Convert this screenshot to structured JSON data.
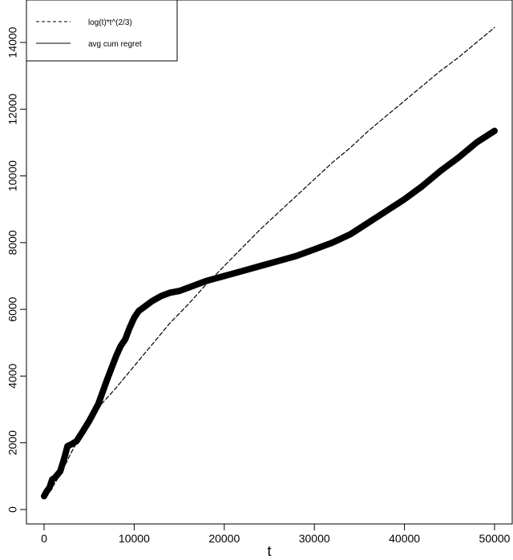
{
  "chart_data": {
    "type": "line",
    "title": "",
    "xlabel": "t",
    "ylabel": "",
    "xlim": [
      0,
      50000
    ],
    "ylim": [
      0,
      15000
    ],
    "x_ticks": [
      0,
      10000,
      20000,
      30000,
      40000,
      50000
    ],
    "x_tick_labels": [
      "0",
      "10000",
      "20000",
      "30000",
      "40000",
      "50000"
    ],
    "y_ticks": [
      0,
      2000,
      4000,
      6000,
      8000,
      10000,
      12000,
      14000
    ],
    "y_tick_labels": [
      "0",
      "2000",
      "4000",
      "6000",
      "8000",
      "10000",
      "12000",
      "14000"
    ],
    "grid": false,
    "legend": {
      "position": "top-left",
      "entries": [
        {
          "label": "log(t)*t^(2/3)",
          "style": "dashed"
        },
        {
          "label": "avg cum regret",
          "style": "solid"
        }
      ]
    },
    "series": [
      {
        "name": "log(t)*t^(2/3)",
        "style": "dashed",
        "color": "#000000",
        "x": [
          0,
          1000,
          2000,
          3000,
          4000,
          5000,
          6000,
          7000,
          8000,
          10000,
          12000,
          14000,
          16000,
          18000,
          20000,
          22000,
          24000,
          26000,
          28000,
          30000,
          32000,
          34000,
          36000,
          38000,
          40000,
          42000,
          44000,
          46000,
          48000,
          50000
        ],
        "y": [
          400,
          700,
          1150,
          1700,
          2200,
          2650,
          3050,
          3350,
          3650,
          4300,
          4950,
          5600,
          6150,
          6750,
          7300,
          7850,
          8400,
          8900,
          9400,
          9900,
          10400,
          10850,
          11350,
          11800,
          12250,
          12700,
          13150,
          13550,
          14000,
          14450
        ]
      },
      {
        "name": "avg cum regret",
        "style": "thick-solid",
        "color": "#000000",
        "x": [
          0,
          300,
          600,
          900,
          1200,
          1800,
          2200,
          2600,
          3000,
          3600,
          4200,
          5000,
          6000,
          7000,
          8000,
          8500,
          9000,
          9500,
          10000,
          10500,
          11000,
          12000,
          13000,
          14000,
          15000,
          16000,
          17000,
          18000,
          20000,
          22000,
          24000,
          26000,
          28000,
          30000,
          32000,
          34000,
          36000,
          38000,
          40000,
          42000,
          44000,
          46000,
          48000,
          50000
        ],
        "y": [
          400,
          550,
          650,
          900,
          950,
          1150,
          1500,
          1900,
          1950,
          2050,
          2300,
          2650,
          3150,
          3900,
          4600,
          4900,
          5100,
          5450,
          5750,
          5950,
          6050,
          6250,
          6400,
          6500,
          6550,
          6650,
          6750,
          6850,
          7000,
          7150,
          7300,
          7450,
          7600,
          7800,
          8000,
          8250,
          8600,
          8950,
          9300,
          9700,
          10150,
          10550,
          11000,
          11350
        ]
      }
    ]
  }
}
